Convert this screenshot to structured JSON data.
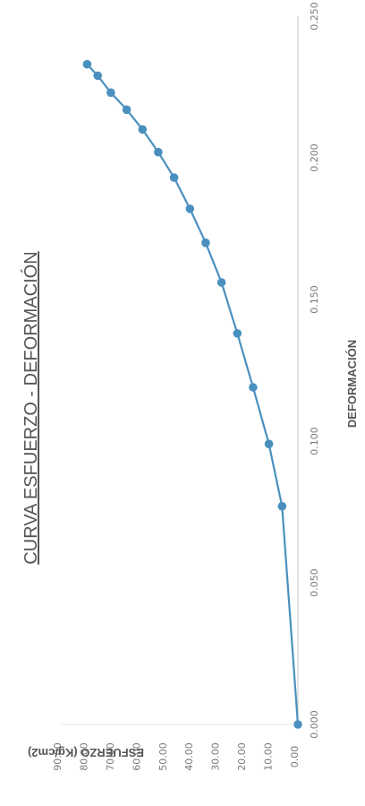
{
  "chart_data": {
    "type": "line",
    "title": "CURVA ESFUERZO - DEFORMACIÓN",
    "xlabel": "DEFORMACIÓN",
    "ylabel": "ESFUERZO (Kg/cm2)",
    "xlim": [
      0,
      0.25
    ],
    "ylim": [
      0,
      90
    ],
    "x_ticks": [
      "0.000",
      "0.050",
      "0.100",
      "0.150",
      "0.200",
      "0.250"
    ],
    "y_ticks": [
      "0.00",
      "10.00",
      "20.00",
      "30.00",
      "40.00",
      "50.00",
      "60.00",
      "70.00",
      "80.00",
      "90.00"
    ],
    "grid": false,
    "orientation": "rotated-90-counterclockwise",
    "series": [
      {
        "color": "#4a90bf",
        "x": [
          0.0,
          0.077,
          0.099,
          0.119,
          0.138,
          0.156,
          0.17,
          0.182,
          0.193,
          0.202,
          0.21,
          0.217,
          0.223,
          0.229,
          0.233
        ],
        "y": [
          0.0,
          6.0,
          11.0,
          17.0,
          23.0,
          29.0,
          35.0,
          41.0,
          47.0,
          53.0,
          59.0,
          65.0,
          71.0,
          76.0,
          80.0
        ]
      }
    ]
  }
}
